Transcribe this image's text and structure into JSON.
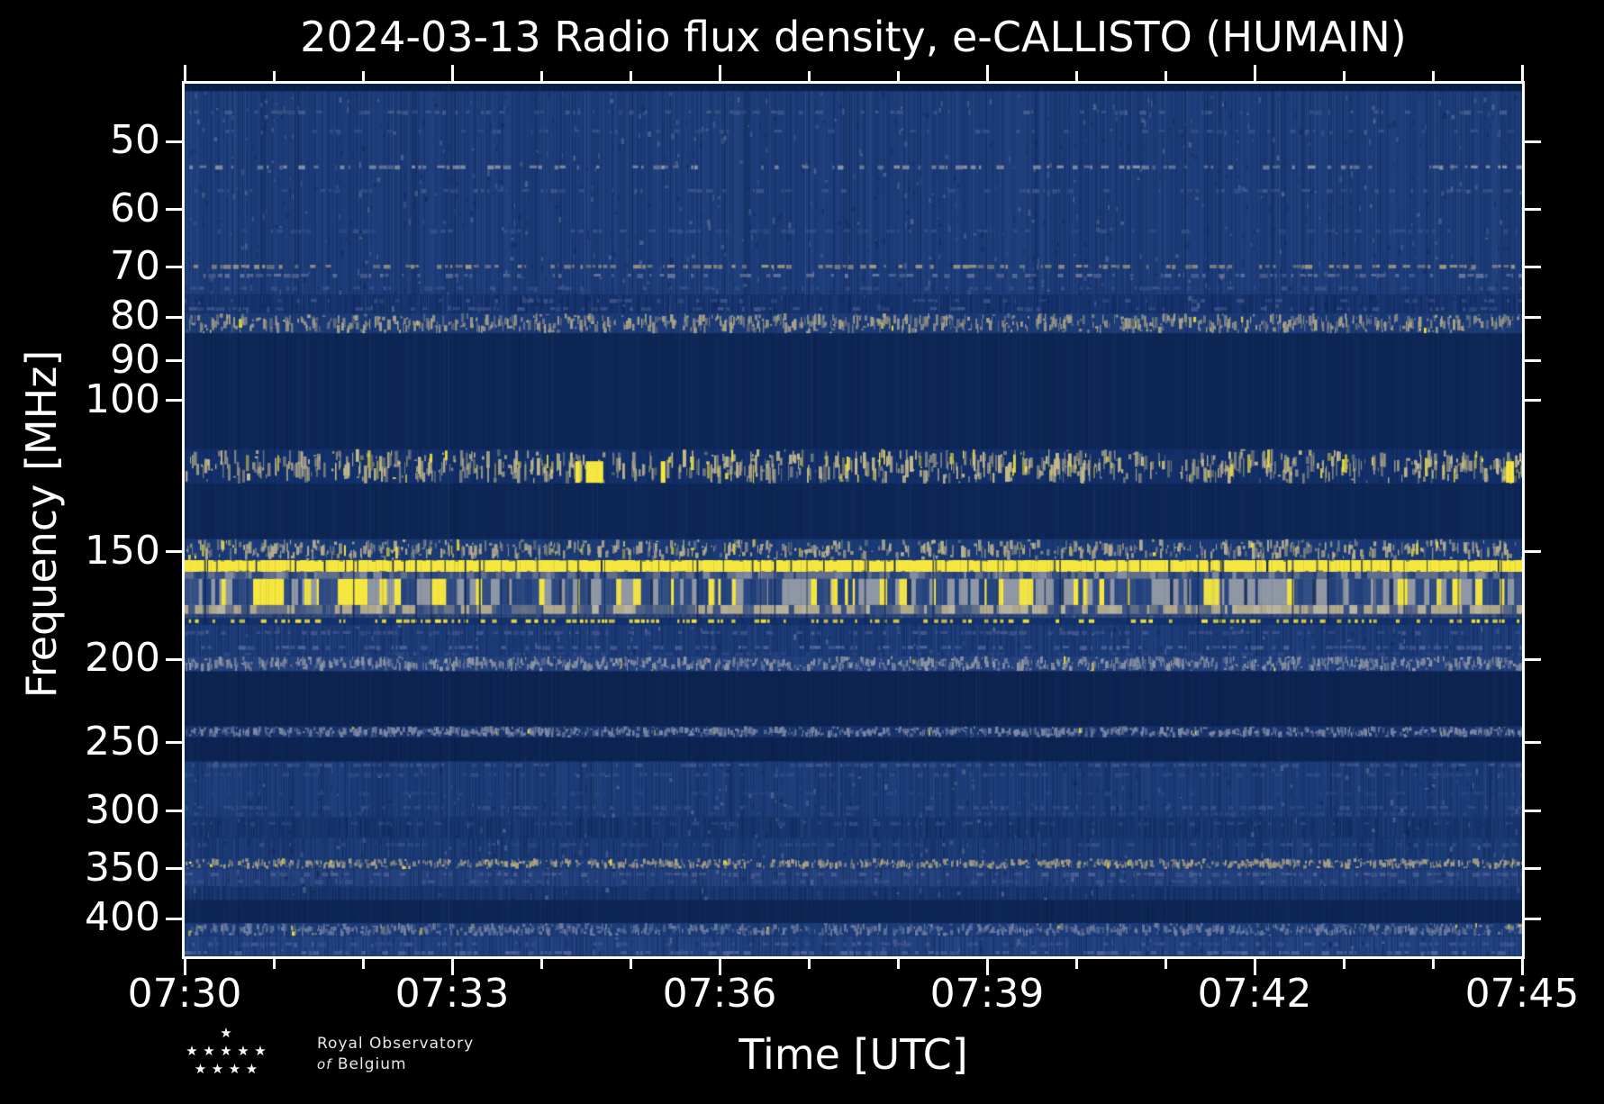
{
  "title": "2024-03-13 Radio flux density, e-CALLISTO (HUMAIN)",
  "axes": {
    "xlabel": "Time [UTC]",
    "ylabel": "Frequency [MHz]"
  },
  "logo": {
    "line1": "Royal Observatory",
    "line2_word1": "of",
    "line2_word2": "Belgium",
    "star_rows": [
      1,
      5,
      4
    ]
  },
  "chart_data": {
    "type": "heatmap",
    "subtype": "radio-spectrogram",
    "title": "2024-03-13 Radio flux density, e-CALLISTO (HUMAIN)",
    "xlabel": "Time [UTC]",
    "ylabel": "Frequency [MHz]",
    "x_axis": {
      "start_utc": "07:30",
      "end_utc": "07:45",
      "duration_minutes": 15,
      "major_tick_labels": [
        "07:30",
        "07:33",
        "07:36",
        "07:39",
        "07:42",
        "07:45"
      ],
      "major_tick_minutes": [
        0,
        3,
        6,
        9,
        12,
        15
      ],
      "minor_tick_every_minutes": 1
    },
    "y_axis": {
      "scale": "log",
      "unit": "MHz",
      "tick_values": [
        50,
        60,
        70,
        80,
        90,
        100,
        150,
        200,
        250,
        300,
        350,
        400
      ],
      "freq_min": 42.85,
      "freq_max": 442.6,
      "increases_downward": true
    },
    "legend": "none",
    "grid": false,
    "colors": {
      "background": "#000000",
      "axis": "#ffffff",
      "noise_base": "#1d3d7b",
      "quiet_base": "#0e2756",
      "bright_yellow": "#f6e73e",
      "beige": "#b2a98c",
      "gray": "#9097a4"
    },
    "bands": [
      {
        "f": [
          42.85,
          43.7
        ],
        "type": "quiet",
        "base": "#0a2148"
      },
      {
        "f": [
          43.7,
          75.4
        ],
        "type": "noise",
        "base": "#1d3d7b",
        "rows": [
          [
            46.2,
            "#49608f",
            0.35
          ],
          [
            48.6,
            "#3a548c",
            0.3
          ],
          [
            53.5,
            "#8d94a6",
            0.45
          ],
          [
            57.0,
            "#40588e",
            0.35
          ],
          [
            63.5,
            "#37528a",
            0.35
          ],
          [
            69.8,
            "#a29c85",
            0.6
          ],
          [
            71.5,
            "#6b789f",
            0.5
          ],
          [
            74.0,
            "#3f578d",
            0.35
          ]
        ]
      },
      {
        "f": [
          75.4,
          79.2
        ],
        "type": "noise",
        "base": "#17346f",
        "rows": [
          [
            76.5,
            "#3c548b",
            0.3
          ],
          [
            78.2,
            "#455b90",
            0.35
          ]
        ]
      },
      {
        "f": [
          79.2,
          83.6
        ],
        "type": "speckle",
        "base": "#1c3c79",
        "speckle": "#a9a189",
        "density": 0.5,
        "yellow_prob": 0.02
      },
      {
        "f": [
          83.6,
          113.9
        ],
        "type": "quiet",
        "base": "#0e2756"
      },
      {
        "f": [
          113.9,
          125.0
        ],
        "type": "speckle",
        "base": "#13306a",
        "speckle": "#c5b98d",
        "density": 0.5,
        "yellow_prob": 0.12,
        "blobs": [
          [
            0.292,
            0.004
          ],
          [
            0.3,
            0.013
          ],
          [
            0.356,
            0.0035
          ],
          [
            0.988,
            0.006
          ]
        ]
      },
      {
        "f": [
          125.0,
          144.9
        ],
        "type": "quiet",
        "base": "#0e2756"
      },
      {
        "f": [
          144.9,
          153.3
        ],
        "type": "speckle",
        "base": "#1b3b77",
        "speckle": "#b7ae8e",
        "density": 0.45,
        "yellow_prob": 0.06
      },
      {
        "f": [
          153.3,
          158.2
        ],
        "type": "yellow_line",
        "base": "#f6e73e",
        "cut": "#0d2452"
      },
      {
        "f": [
          158.2,
          161.2
        ],
        "type": "gray_mix",
        "base": "#5f6d8f",
        "navy": "#1e3e7c"
      },
      {
        "f": [
          161.2,
          172.9
        ],
        "type": "yellow_blocks",
        "base": "#9097a4",
        "navy": "#1e3e7c",
        "yellow": "#f6e73e",
        "blocks": [
          [
            0.0512,
            0.023
          ],
          [
            0.1145,
            0.0222
          ]
        ]
      },
      {
        "f": [
          172.9,
          177.1
        ],
        "type": "gray_mix",
        "base": "#b0a88c",
        "navy": "#2b4781"
      },
      {
        "f": [
          177.1,
          179.1
        ],
        "type": "noise",
        "base": "#2c477f",
        "rows": []
      },
      {
        "f": [
          179.1,
          182.1
        ],
        "type": "yellow_dashes",
        "base": "#13306a",
        "yellow": "#f2e13b",
        "density": 0.55
      },
      {
        "f": [
          182.1,
          198.2
        ],
        "type": "noise",
        "base": "#1c3c79",
        "rows": [
          [
            186,
            "#43598f",
            0.45
          ],
          [
            193.5,
            "#56689c",
            0.5
          ],
          [
            197,
            "#2f4b86",
            0.4
          ]
        ]
      },
      {
        "f": [
          198.2,
          206.5
        ],
        "type": "speckle",
        "base": "#24427f",
        "speckle": "#9097a4",
        "density": 0.55,
        "yellow_prob": 0.01
      },
      {
        "f": [
          206.5,
          239.1
        ],
        "type": "quiet",
        "base": "#0d2453"
      },
      {
        "f": [
          239.1,
          246.6
        ],
        "type": "speckle",
        "base": "#17346d",
        "speckle": "#8089a4",
        "density": 0.6,
        "yellow_prob": 0.01
      },
      {
        "f": [
          246.6,
          262.7
        ],
        "type": "quiet",
        "base": "#0d2453"
      },
      {
        "f": [
          262.7,
          305.3
        ],
        "type": "noise",
        "base": "#1c3c79",
        "rows": [
          [
            265,
            "#41588e",
            0.5
          ],
          [
            272,
            "#324e88",
            0.45
          ],
          [
            286,
            "#2b4783",
            0.35
          ],
          [
            297,
            "#3b548b",
            0.45
          ],
          [
            302,
            "#2d4a85",
            0.4
          ]
        ]
      },
      {
        "f": [
          305.3,
          322.3
        ],
        "type": "noise",
        "base": "#18356f",
        "rows": [
          [
            310,
            "#304c87",
            0.4
          ]
        ]
      },
      {
        "f": [
          322.3,
          340.5
        ],
        "type": "noise",
        "base": "#1b3b77",
        "rows": [
          [
            328,
            "#344f89",
            0.4
          ]
        ]
      },
      {
        "f": [
          340.5,
          350.5
        ],
        "type": "speckle",
        "base": "#1d3d7a",
        "speckle": "#aaa086",
        "density": 0.5,
        "yellow_prob": 0.03
      },
      {
        "f": [
          350.5,
          367.5
        ],
        "type": "noise",
        "base": "#23417e",
        "rows": [
          [
            355,
            "#4d6095",
            0.5
          ],
          [
            362,
            "#3b548b",
            0.4
          ]
        ]
      },
      {
        "f": [
          367.5,
          380.9
        ],
        "type": "noise",
        "base": "#18356f",
        "rows": []
      },
      {
        "f": [
          380.9,
          404.8
        ],
        "type": "quiet",
        "base": "#0e2655"
      },
      {
        "f": [
          404.8,
          419.5
        ],
        "type": "speckle",
        "base": "#1d3d7a",
        "speckle": "#7280a3",
        "density": 0.55,
        "yellow_prob": 0.02
      },
      {
        "f": [
          419.5,
          442.6
        ],
        "type": "noise",
        "base": "#214180",
        "rows": [
          [
            428,
            "#46598f",
            0.45
          ],
          [
            438,
            "#55679b",
            0.5
          ]
        ]
      }
    ],
    "vertical_cut_region": [
      153.3,
      182.1
    ]
  }
}
